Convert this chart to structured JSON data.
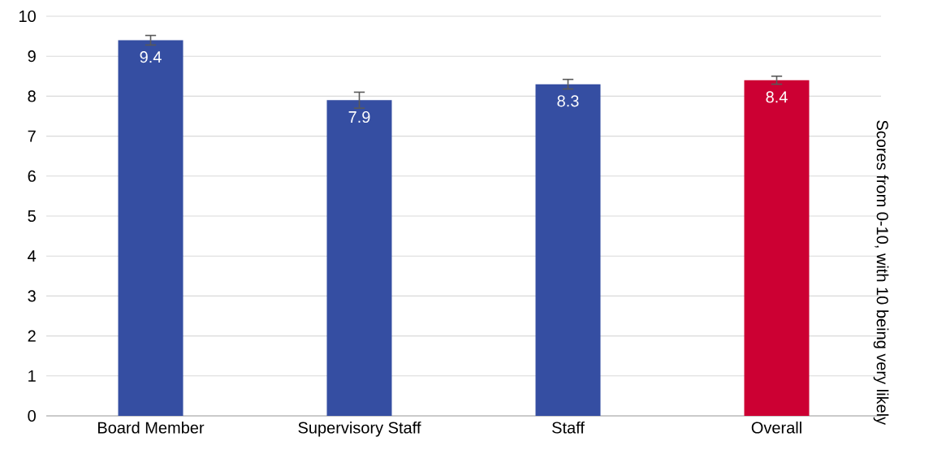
{
  "chart_data": {
    "type": "bar",
    "ylabel": "Scores from 0-10, with 10 being very likely",
    "categories": [
      "Board Member",
      "Supervisory Staff",
      "Staff",
      "Overall"
    ],
    "values": [
      9.4,
      7.9,
      8.3,
      8.4
    ],
    "errors": [
      0.12,
      0.2,
      0.12,
      0.1
    ],
    "value_labels": [
      "9.4",
      "7.9",
      "8.3",
      "8.4"
    ],
    "colors": [
      "#354ea2",
      "#354ea2",
      "#354ea2",
      "#cc0033"
    ],
    "ylim": [
      0,
      10
    ],
    "yticks": [
      0,
      1,
      2,
      3,
      4,
      5,
      6,
      7,
      8,
      9,
      10
    ],
    "grid": "y"
  }
}
